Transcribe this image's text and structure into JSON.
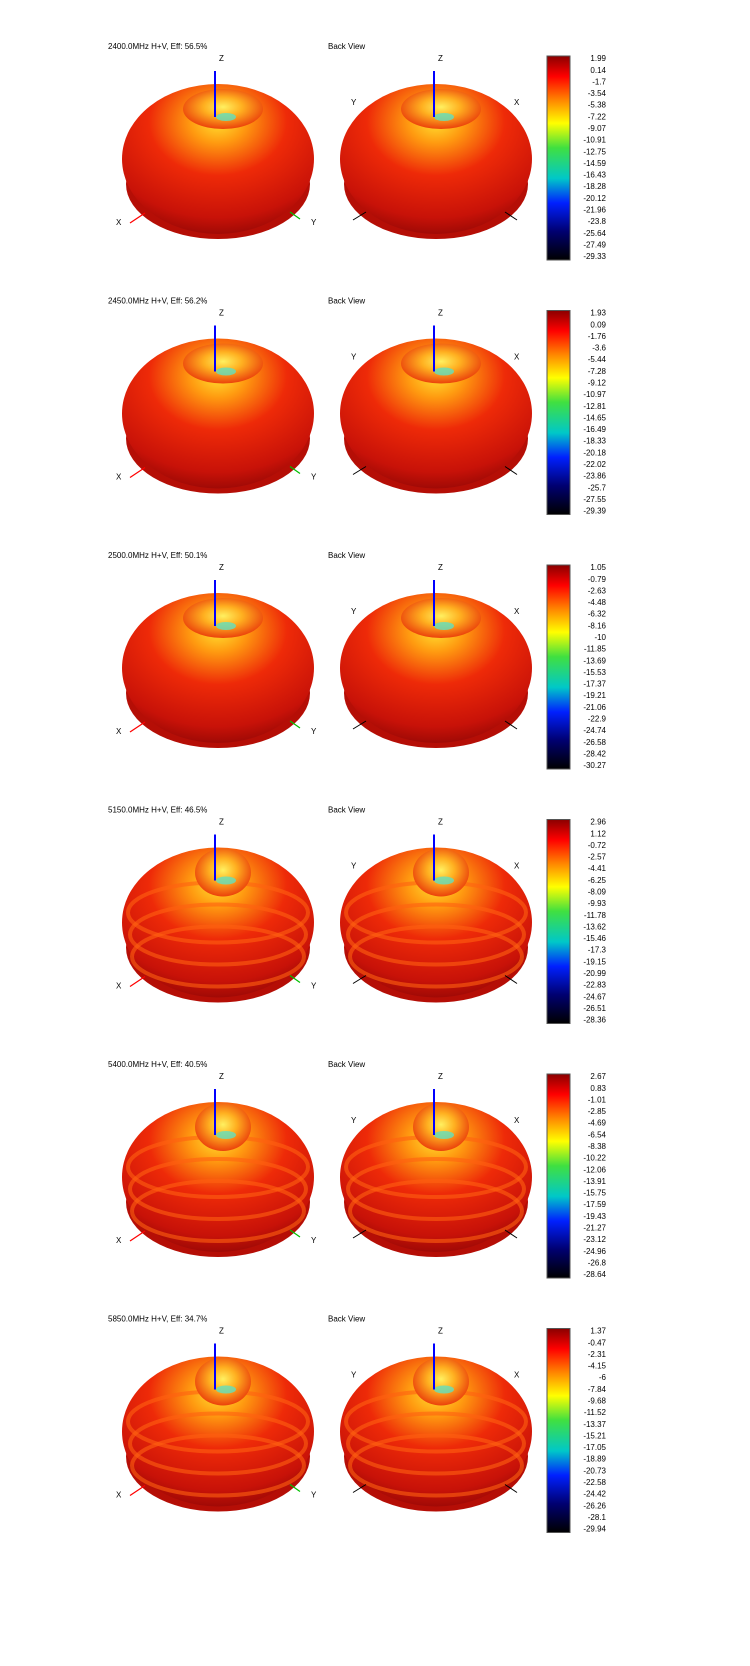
{
  "panels": [
    {
      "title": "2400.0MHz H+V, Eff: 56.5%",
      "back_view": "Back View",
      "front_axes": {
        "z": "Z",
        "x": "X",
        "y": "Y"
      },
      "back_axes": {
        "z": "Z",
        "y": "Y",
        "x": "X"
      },
      "scale": [
        1.99,
        0.14,
        -1.7,
        -3.54,
        -5.38,
        -7.22,
        -9.07,
        -10.91,
        -12.75,
        -14.59,
        -16.43,
        -18.28,
        -20.12,
        -21.96,
        -23.8,
        -25.64,
        -27.49,
        -29.33
      ]
    },
    {
      "title": "2450.0MHz H+V, Eff: 56.2%",
      "back_view": "Back View",
      "front_axes": {
        "z": "Z",
        "x": "X",
        "y": "Y"
      },
      "back_axes": {
        "z": "Z",
        "y": "Y",
        "x": "X"
      },
      "scale": [
        1.93,
        0.09,
        -1.76,
        -3.6,
        -5.44,
        -7.28,
        -9.12,
        -10.97,
        -12.81,
        -14.65,
        -16.49,
        -18.33,
        -20.18,
        -22.02,
        -23.86,
        -25.7,
        -27.55,
        -29.39
      ]
    },
    {
      "title": "2500.0MHz H+V, Eff: 50.1%",
      "back_view": "Back View",
      "front_axes": {
        "z": "Z",
        "x": "X",
        "y": "Y"
      },
      "back_axes": {
        "z": "Z",
        "y": "Y",
        "x": "X"
      },
      "scale": [
        1.05,
        -0.79,
        -2.63,
        -4.48,
        -6.32,
        -8.16,
        -10,
        -11.85,
        -13.69,
        -15.53,
        -17.37,
        -19.21,
        -21.06,
        -22.9,
        -24.74,
        -26.58,
        -28.42,
        -30.27
      ]
    },
    {
      "title": "5150.0MHz H+V, Eff: 46.5%",
      "back_view": "Back View",
      "front_axes": {
        "z": "Z",
        "x": "X",
        "y": "Y"
      },
      "back_axes": {
        "z": "Z",
        "y": "Y",
        "x": "X"
      },
      "scale": [
        2.96,
        1.12,
        -0.72,
        -2.57,
        -4.41,
        -6.25,
        -8.09,
        -9.93,
        -11.78,
        -13.62,
        -15.46,
        -17.3,
        -19.15,
        -20.99,
        -22.83,
        -24.67,
        -26.51,
        -28.36
      ]
    },
    {
      "title": "5400.0MHz H+V, Eff: 40.5%",
      "back_view": "Back View",
      "front_axes": {
        "z": "Z",
        "x": "X",
        "y": "Y"
      },
      "back_axes": {
        "z": "Z",
        "y": "Y",
        "x": "X"
      },
      "scale": [
        2.67,
        0.83,
        -1.01,
        -2.85,
        -4.69,
        -6.54,
        -8.38,
        -10.22,
        -12.06,
        -13.91,
        -15.75,
        -17.59,
        -19.43,
        -21.27,
        -23.12,
        -24.96,
        -26.8,
        -28.64
      ]
    },
    {
      "title": "5850.0MHz H+V, Eff: 34.7%",
      "back_view": "Back View",
      "front_axes": {
        "z": "Z",
        "x": "X",
        "y": "Y"
      },
      "back_axes": {
        "z": "Z",
        "y": "Y",
        "x": "X"
      },
      "scale": [
        1.37,
        -0.47,
        -2.31,
        -4.15,
        -6,
        -7.84,
        -9.68,
        -11.52,
        -13.37,
        -15.21,
        -17.05,
        -18.89,
        -20.73,
        -22.58,
        -24.42,
        -26.26,
        -28.1,
        -29.94
      ]
    }
  ]
}
